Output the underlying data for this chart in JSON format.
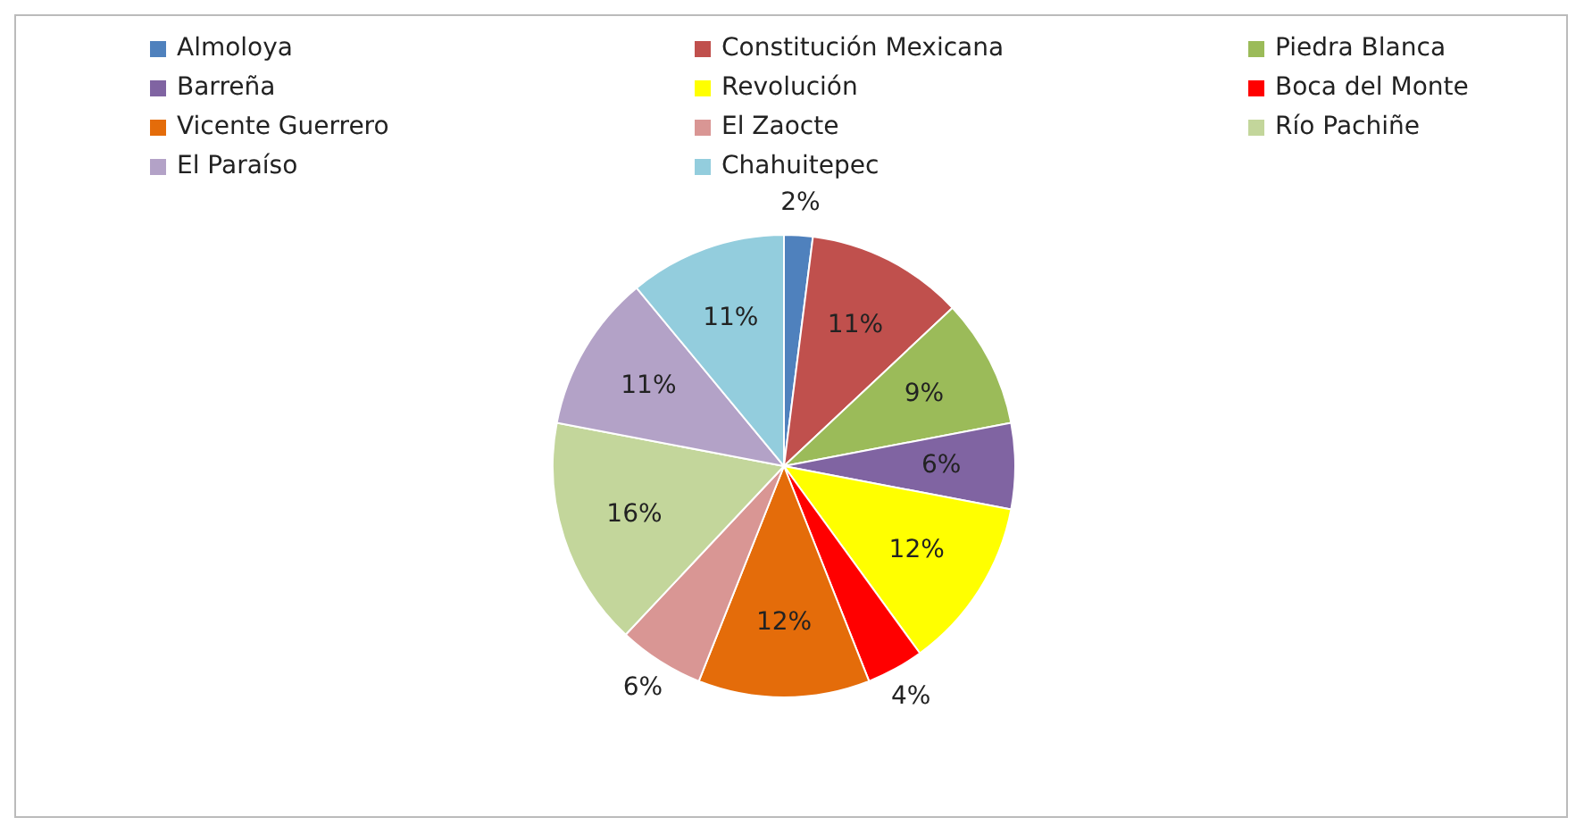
{
  "chart_data": {
    "type": "pie",
    "legend": "top",
    "categories": [
      "Almoloya",
      "Constitución Mexicana",
      "Piedra Blanca",
      "Barreña",
      "Revolución",
      "Boca del Monte",
      "Vicente Guerrero",
      "El Zaocte",
      "Río Pachiñe",
      "El Paraíso",
      "Chahuitepec"
    ],
    "values": [
      2,
      11,
      9,
      6,
      12,
      4,
      12,
      6,
      16,
      11,
      11
    ],
    "colors": [
      "#4f81bd",
      "#c0504d",
      "#9bbb59",
      "#8064a2",
      "#ffff00",
      "#ff0000",
      "#e46c0a",
      "#d99694",
      "#c3d69b",
      "#b3a2c7",
      "#93cddd"
    ],
    "value_labels": [
      "2%",
      "11%",
      "9%",
      "6%",
      "12%",
      "4%",
      "12%",
      "6%",
      "16%",
      "11%",
      "11%"
    ]
  }
}
